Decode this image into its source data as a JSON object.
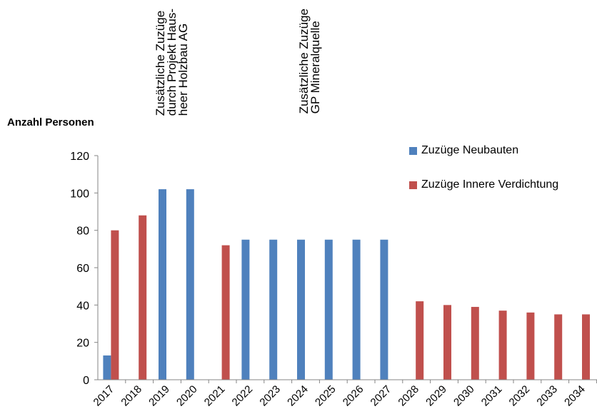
{
  "chart_data": {
    "type": "bar",
    "ylabel": "Anzahl Personen",
    "ylim": [
      0,
      120
    ],
    "yticks": [
      "0",
      "20",
      "40",
      "60",
      "80",
      "100",
      "120"
    ],
    "categories": [
      "2017",
      "2018",
      "2019",
      "2020",
      "2021",
      "2022",
      "2023",
      "2024",
      "2025",
      "2026",
      "2027",
      "2028",
      "2029",
      "2030",
      "2031",
      "2032",
      "2033",
      "2034"
    ],
    "series": [
      {
        "name": "Zuzüge Neubauten",
        "color": "#4f81bd",
        "values": [
          13,
          0,
          102,
          102,
          0,
          75,
          75,
          75,
          75,
          75,
          75,
          0,
          0,
          0,
          0,
          0,
          0,
          0
        ]
      },
      {
        "name": "Zuzüge Innere Verdichtung",
        "color": "#c0504d",
        "values": [
          80,
          88,
          0,
          0,
          72,
          0,
          0,
          0,
          0,
          0,
          0,
          42,
          40,
          39,
          37,
          36,
          35,
          35
        ]
      }
    ],
    "annotations": [
      {
        "text": "Zusätzliche Zuzüge\ndurch Projekt Haus-\nheer Holzbau AG",
        "category": "2019"
      },
      {
        "text": "Zusätzliche Zuzüge\nGP Mineralquelle",
        "category": "2024"
      }
    ],
    "legend_position": "top-right",
    "grid": false
  }
}
